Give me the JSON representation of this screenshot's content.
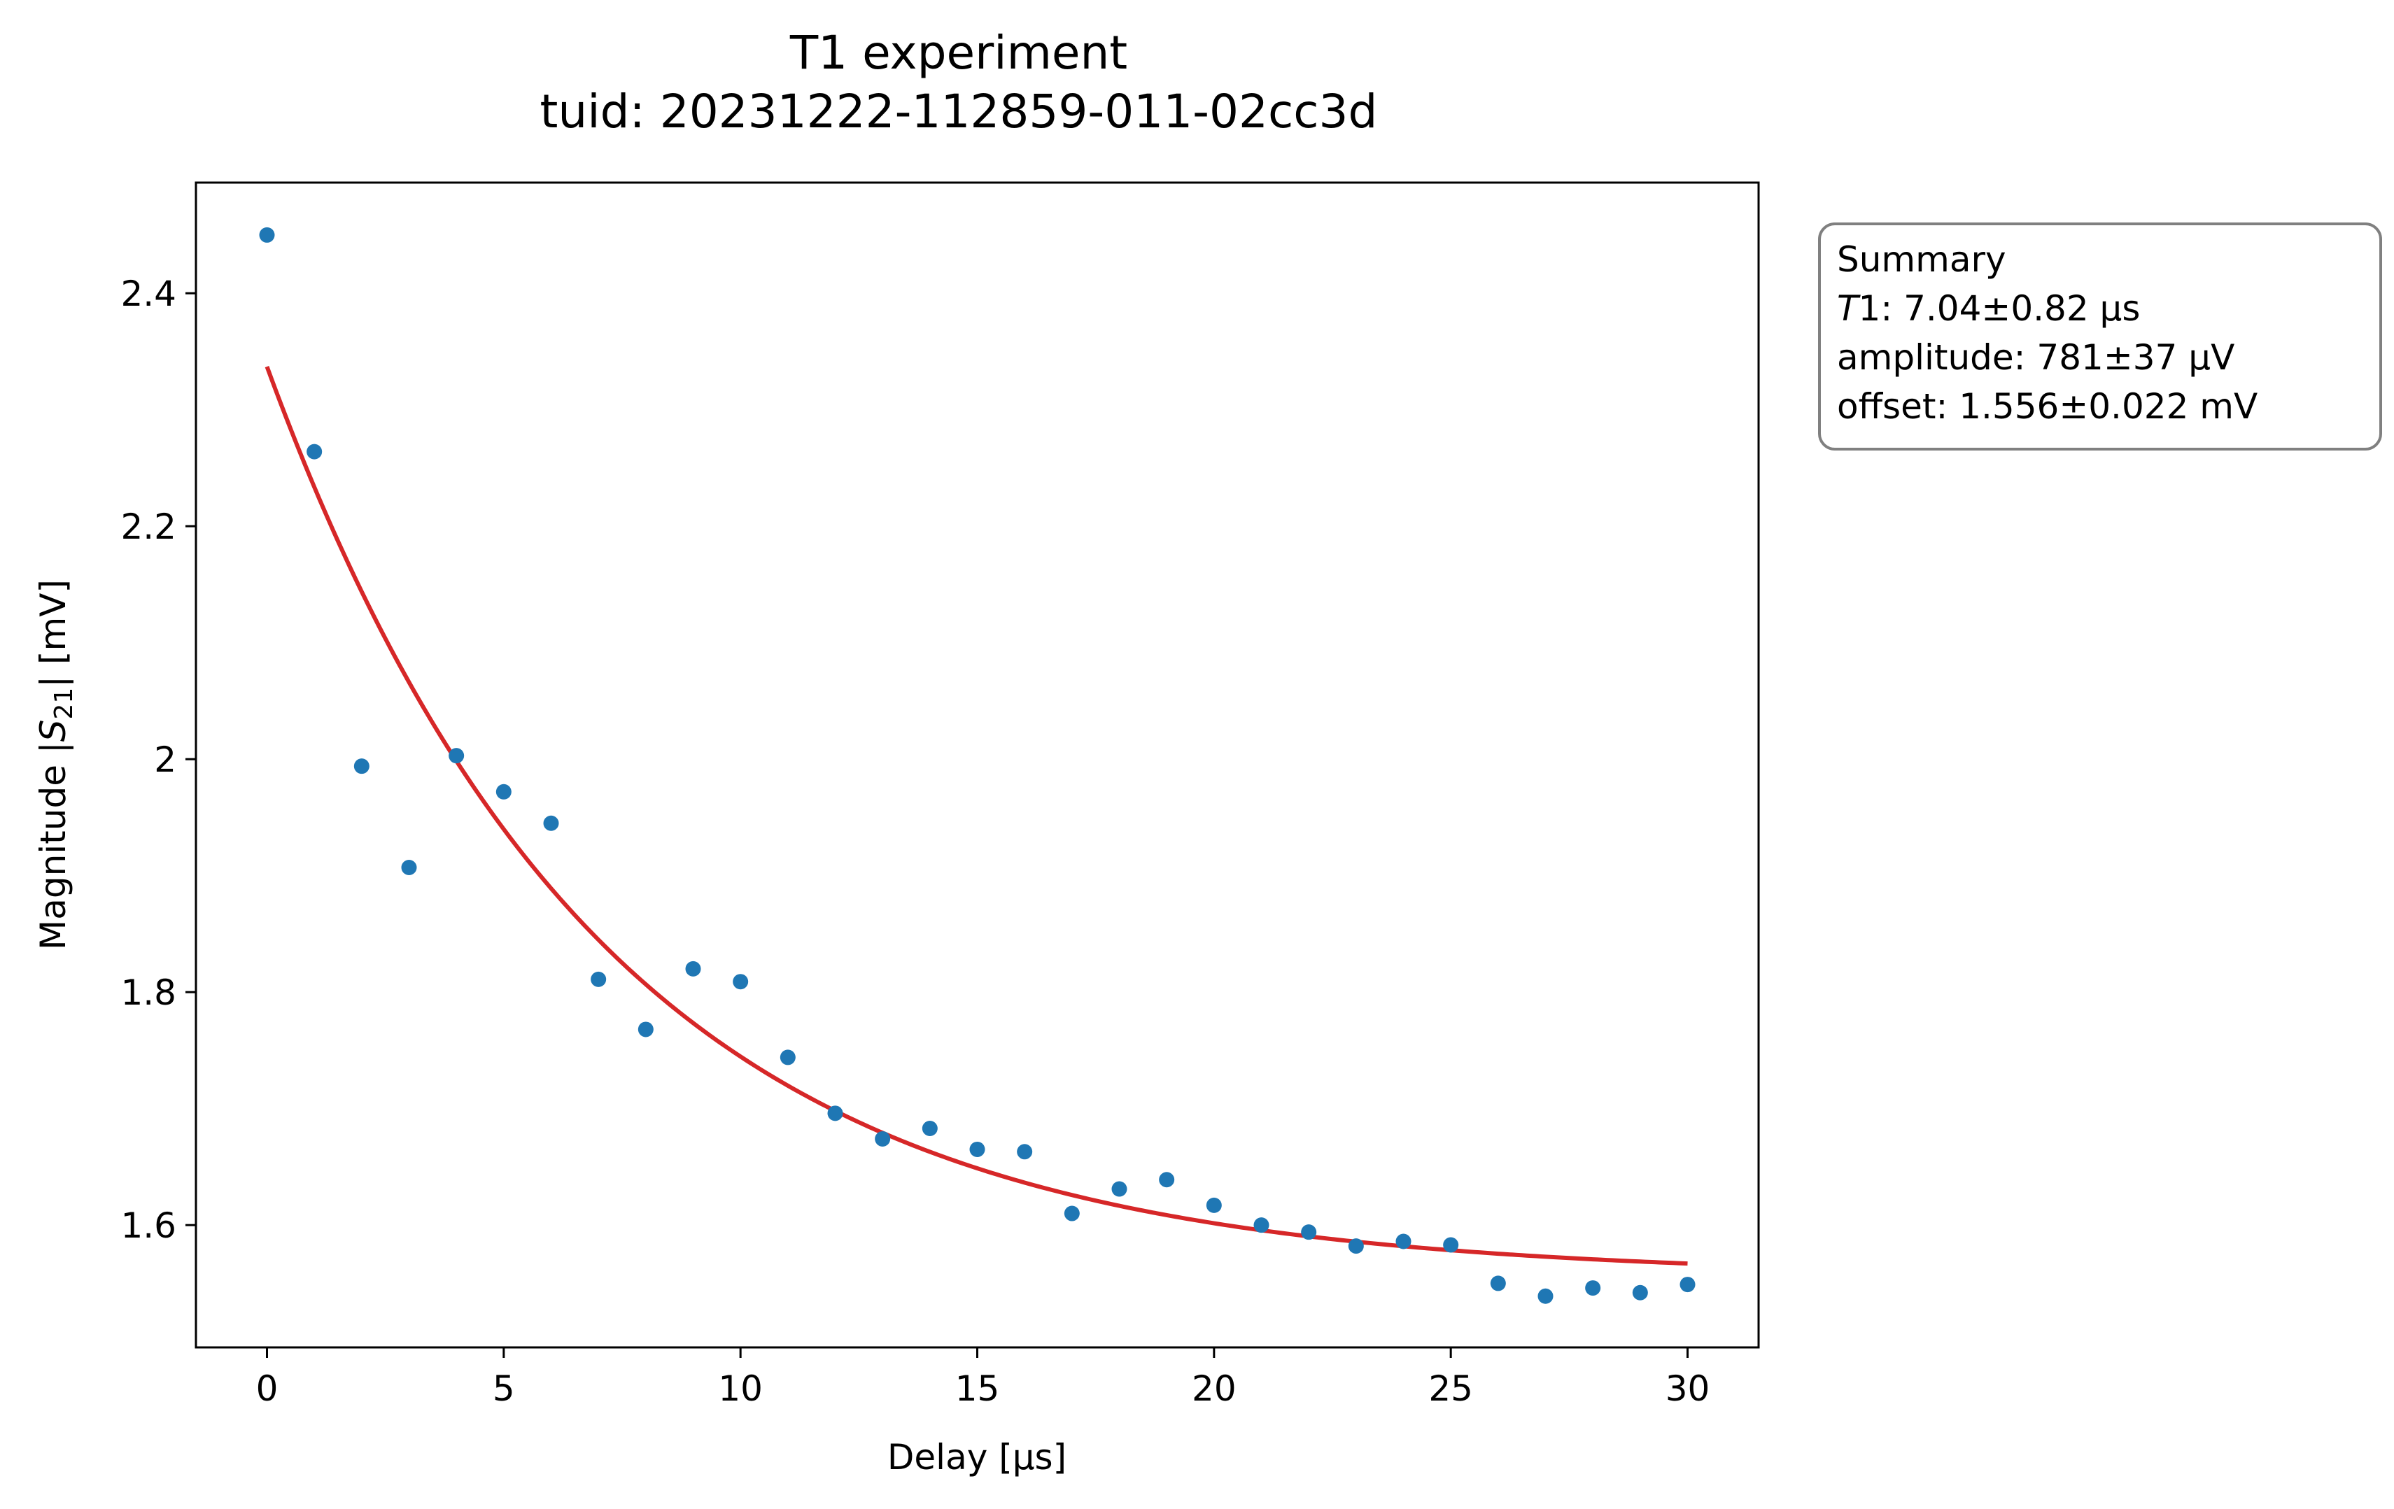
{
  "chart_data": {
    "type": "scatter",
    "title": "T1 experiment",
    "subtitle": "tuid: 20231222-112859-011-02cc3d",
    "xlabel": "Delay [µs]",
    "ylabel": {
      "prefix": "Magnitude |",
      "symbol": "S",
      "subscript": "21",
      "suffix": "| [mV]"
    },
    "xlim": [
      -1.5,
      31.5
    ],
    "ylim": [
      1.495,
      2.495
    ],
    "x_ticks": [
      0,
      5,
      10,
      15,
      20,
      25,
      30
    ],
    "x_tick_labels": [
      "0",
      "5",
      "10",
      "15",
      "20",
      "25",
      "30"
    ],
    "y_ticks": [
      1.6,
      1.8,
      2.0,
      2.2,
      2.4
    ],
    "y_tick_labels": [
      "1.6",
      "1.8",
      "2",
      "2.2",
      "2.4"
    ],
    "grid": false,
    "series": [
      {
        "kind": "points",
        "color": "#1f77b4",
        "x": [
          0,
          1,
          2,
          3,
          4,
          5,
          6,
          7,
          8,
          9,
          10,
          11,
          12,
          13,
          14,
          15,
          16,
          17,
          18,
          19,
          20,
          21,
          22,
          23,
          24,
          25,
          26,
          27,
          28,
          29,
          30
        ],
        "y": [
          2.45,
          2.264,
          1.994,
          1.907,
          2.003,
          1.972,
          1.945,
          1.811,
          1.768,
          1.82,
          1.809,
          1.744,
          1.696,
          1.674,
          1.683,
          1.665,
          1.663,
          1.61,
          1.631,
          1.639,
          1.617,
          1.6,
          1.594,
          1.582,
          1.586,
          1.583,
          1.55,
          1.539,
          1.546,
          1.542,
          1.549
        ]
      },
      {
        "kind": "fit",
        "color": "#d62728",
        "model": "offset + amplitude * exp(-t / T1)",
        "T1_us": 7.04,
        "amplitude_mV": 0.781,
        "offset_mV": 1.556,
        "t_range": [
          0,
          30
        ]
      }
    ],
    "summary_box": {
      "placement": "right of plot, top",
      "header": "Summary",
      "lines": [
        {
          "label_italic": "T",
          "label_rest": "1",
          "value": ": 7.04±0.82 µs"
        },
        {
          "label_italic": "",
          "label_rest": "amplitude",
          "value": ": 781±37 µV"
        },
        {
          "label_italic": "",
          "label_rest": "offset",
          "value": ": 1.556±0.022 mV"
        }
      ]
    }
  }
}
